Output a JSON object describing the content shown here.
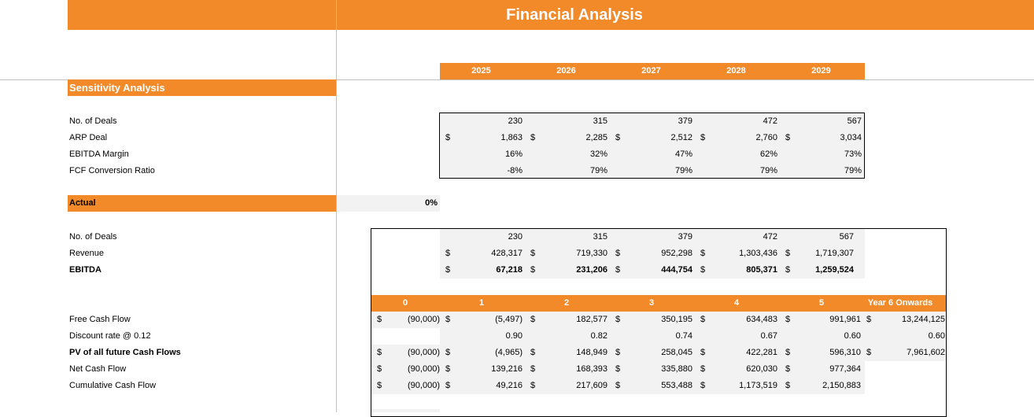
{
  "title": "Financial Analysis",
  "years": [
    "2025",
    "2026",
    "2027",
    "2028",
    "2029"
  ],
  "sensitivity": {
    "heading": "Sensitivity Analysis",
    "labels": [
      "No. of Deals",
      "ARP Deal",
      "EBITDA Margin",
      "FCF Conversion Ratio"
    ],
    "rows": [
      [
        "230",
        "315",
        "379",
        "472",
        "567"
      ],
      [
        "1,863",
        "2,285",
        "2,512",
        "2,760",
        "3,034"
      ],
      [
        "16%",
        "32%",
        "47%",
        "62%",
        "73%"
      ],
      [
        "-8%",
        "79%",
        "79%",
        "79%",
        "79%"
      ]
    ]
  },
  "actual": {
    "label": "Actual",
    "value": "0%"
  },
  "ops": {
    "labels": [
      "No. of Deals",
      "Revenue",
      "EBITDA"
    ],
    "rows": [
      [
        "230",
        "315",
        "379",
        "472",
        "567"
      ],
      [
        "428,317",
        "719,330",
        "952,298",
        "1,303,436",
        "1,719,307"
      ],
      [
        "67,218",
        "231,206",
        "444,754",
        "805,371",
        "1,259,524"
      ]
    ]
  },
  "periods": [
    "0",
    "1",
    "2",
    "3",
    "4",
    "5",
    "Year 6 Onwards"
  ],
  "cash": {
    "labels": [
      "Free Cash Flow",
      "Discount rate @ 0.12",
      "PV of all future Cash Flows",
      "Net Cash Flow",
      "Cumulative Cash Flow"
    ],
    "rows": [
      [
        "(90,000)",
        "(5,497)",
        "182,577",
        "350,195",
        "634,483",
        "991,961",
        "13,244,125"
      ],
      [
        "",
        "0.90",
        "0.82",
        "0.74",
        "0.67",
        "0.60",
        "0.60"
      ],
      [
        "(90,000)",
        "(4,965)",
        "148,949",
        "258,045",
        "422,281",
        "596,310",
        "7,961,602"
      ],
      [
        "(90,000)",
        "139,216",
        "168,393",
        "335,880",
        "620,030",
        "977,364",
        ""
      ],
      [
        "(90,000)",
        "49,216",
        "217,609",
        "553,488",
        "1,173,519",
        "2,150,883",
        ""
      ]
    ]
  },
  "currency": "$"
}
